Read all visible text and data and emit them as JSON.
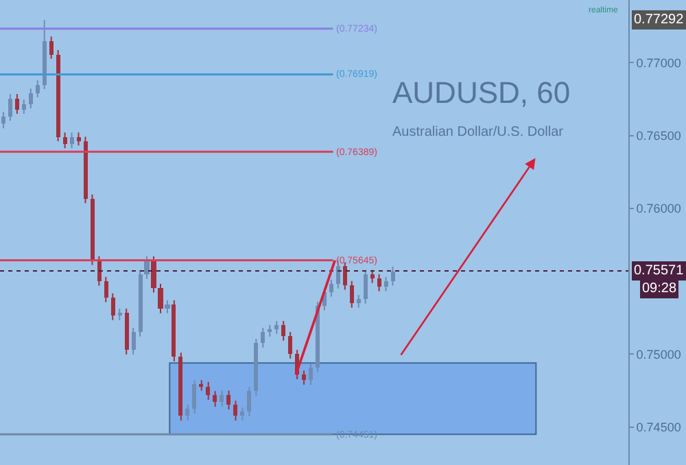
{
  "chart_data": {
    "type": "candlestick",
    "categories": [
      null,
      null,
      null,
      null,
      null,
      null,
      null,
      null,
      null,
      null,
      null,
      null,
      null,
      null,
      null,
      null,
      null,
      null,
      null,
      null,
      null,
      null,
      null,
      null,
      null,
      null,
      null,
      null,
      null,
      null,
      null,
      null,
      null,
      null,
      null,
      null,
      null,
      null,
      null,
      null,
      null,
      null,
      null,
      null,
      null,
      null,
      null,
      null,
      null,
      null,
      null,
      null,
      null,
      null,
      null,
      null,
      null,
      null,
      null,
      null,
      null,
      null,
      null,
      null,
      null,
      null,
      null,
      null,
      null,
      null,
      null,
      null,
      null,
      null,
      null,
      null,
      null,
      null,
      null,
      null,
      null,
      null,
      null,
      null,
      null,
      null,
      null,
      null,
      null,
      null,
      null,
      null
    ],
    "ohlc": [
      [
        0.7658,
        0.76662,
        0.7655,
        0.76632
      ],
      [
        0.76632,
        0.76785,
        0.76602,
        0.76755
      ],
      [
        0.76755,
        0.76785,
        0.76649,
        0.76679
      ],
      [
        0.76679,
        0.76747,
        0.76649,
        0.76717
      ],
      [
        0.76717,
        0.76822,
        0.76687,
        0.76792
      ],
      [
        0.76792,
        0.76879,
        0.76762,
        0.76849
      ],
      [
        0.76849,
        0.77292,
        0.76819,
        0.7715
      ],
      [
        0.7715,
        0.7718,
        0.77027,
        0.77057
      ],
      [
        0.77057,
        0.77087,
        0.76461,
        0.76491
      ],
      [
        0.76491,
        0.76521,
        0.76413,
        0.76443
      ],
      [
        0.76443,
        0.76521,
        0.76413,
        0.76491
      ],
      [
        0.76491,
        0.76521,
        0.76432,
        0.76462
      ],
      [
        0.76462,
        0.76492,
        0.76036,
        0.76066
      ],
      [
        0.76066,
        0.76096,
        0.75612,
        0.75642
      ],
      [
        0.75642,
        0.75672,
        0.7547,
        0.755
      ],
      [
        0.755,
        0.7553,
        0.75357,
        0.75387
      ],
      [
        0.75387,
        0.75417,
        0.75234,
        0.75264
      ],
      [
        0.75264,
        0.75313,
        0.75234,
        0.75283
      ],
      [
        0.75283,
        0.75313,
        0.74998,
        0.75028
      ],
      [
        0.75028,
        0.75181,
        0.74998,
        0.75151
      ],
      [
        0.75151,
        0.75577,
        0.75121,
        0.75547
      ],
      [
        0.75547,
        0.75672,
        0.75517,
        0.75642
      ],
      [
        0.75642,
        0.75672,
        0.75423,
        0.75453
      ],
      [
        0.75453,
        0.75483,
        0.75281,
        0.75311
      ],
      [
        0.75311,
        0.7537,
        0.75281,
        0.7534
      ],
      [
        0.7534,
        0.7537,
        0.74951,
        0.74981
      ],
      [
        0.74981,
        0.75011,
        0.74545,
        0.74575
      ],
      [
        0.74575,
        0.74653,
        0.74545,
        0.74623
      ],
      [
        0.74623,
        0.74822,
        0.74593,
        0.74792
      ],
      [
        0.74792,
        0.74822,
        0.7475,
        0.7478
      ],
      [
        0.7478,
        0.7481,
        0.74687,
        0.74717
      ],
      [
        0.74717,
        0.74747,
        0.7464,
        0.7467
      ],
      [
        0.7467,
        0.7475,
        0.7464,
        0.7472
      ],
      [
        0.7472,
        0.7475,
        0.74621,
        0.74651
      ],
      [
        0.74651,
        0.74681,
        0.74545,
        0.74575
      ],
      [
        0.74575,
        0.74634,
        0.74545,
        0.74604
      ],
      [
        0.74604,
        0.74775,
        0.74574,
        0.74745
      ],
      [
        0.74745,
        0.75105,
        0.74715,
        0.75075
      ],
      [
        0.75075,
        0.75181,
        0.75045,
        0.75151
      ],
      [
        0.75151,
        0.752,
        0.75121,
        0.7517
      ],
      [
        0.7517,
        0.75228,
        0.7514,
        0.75198
      ],
      [
        0.75198,
        0.75228,
        0.75093,
        0.75123
      ],
      [
        0.75123,
        0.75153,
        0.7497,
        0.75
      ],
      [
        0.75,
        0.7503,
        0.74828,
        0.74858
      ],
      [
        0.74858,
        0.74888,
        0.74791,
        0.74821
      ],
      [
        0.74821,
        0.74936,
        0.74791,
        0.74906
      ],
      [
        0.74906,
        0.7536,
        0.74876,
        0.7533
      ],
      [
        0.7533,
        0.75455,
        0.753,
        0.75425
      ],
      [
        0.75425,
        0.75511,
        0.75395,
        0.75481
      ],
      [
        0.75481,
        0.75645,
        0.75451,
        0.756
      ],
      [
        0.756,
        0.7563,
        0.75442,
        0.75472
      ],
      [
        0.75472,
        0.75502,
        0.75319,
        0.75349
      ],
      [
        0.75349,
        0.75407,
        0.75319,
        0.75377
      ],
      [
        0.75377,
        0.75577,
        0.75347,
        0.75547
      ],
      [
        0.75547,
        0.75577,
        0.75489,
        0.75519
      ],
      [
        0.75519,
        0.75549,
        0.75432,
        0.75462
      ],
      [
        0.75462,
        0.7553,
        0.75432,
        0.755
      ],
      [
        0.755,
        0.75601,
        0.7547,
        0.75571
      ],
      null,
      null,
      null,
      null,
      null,
      null,
      null,
      null,
      null,
      null,
      null,
      null,
      null,
      null,
      null,
      null,
      null,
      null,
      null,
      null,
      null,
      null,
      null,
      null,
      null,
      null,
      null,
      null,
      null,
      null,
      null,
      null,
      null,
      null
    ],
    "colors": [
      "#6f8db5",
      "#6f8db5",
      "#a2323f",
      "#6f8db5",
      "#6f8db5",
      "#6f8db5",
      "#6f8db5",
      "#a2323f",
      "#a2323f",
      "#a2323f",
      "#6f8db5",
      "#a2323f",
      "#a2323f",
      "#a2323f",
      "#a2323f",
      "#a2323f",
      "#a2323f",
      "#6f8db5",
      "#a2323f",
      "#6f8db5",
      "#6f8db5",
      "#6f8db5",
      "#a2323f",
      "#a2323f",
      "#6f8db5",
      "#a2323f",
      "#a2323f",
      "#6f8db5",
      "#6f8db5",
      "#a2323f",
      "#a2323f",
      "#a2323f",
      "#6f8db5",
      "#a2323f",
      "#a2323f",
      "#6f8db5",
      "#6f8db5",
      "#6f8db5",
      "#6f8db5",
      "#6f8db5",
      "#6f8db5",
      "#a2323f",
      "#a2323f",
      "#a2323f",
      "#a2323f",
      "#6f8db5",
      "#6f8db5",
      "#6f8db5",
      "#6f8db5",
      "#6f8db5",
      "#a2323f",
      "#a2323f",
      "#6f8db5",
      "#6f8db5",
      "#a2323f",
      "#a2323f",
      "#6f8db5",
      "#6f8db5",
      null,
      null,
      null,
      null,
      null,
      null,
      null,
      null,
      null,
      null,
      null,
      null,
      null,
      null,
      null,
      null,
      null,
      null,
      null,
      null,
      null,
      null,
      null,
      null,
      null,
      null,
      null,
      null,
      null,
      null,
      null,
      null,
      null,
      null
    ],
    "ylim": [
      0.7424,
      0.7743
    ],
    "yticks": [
      {
        "value": 0.745,
        "label": "0.74500"
      },
      {
        "value": 0.75,
        "label": "0.75000"
      },
      {
        "value": 0.76,
        "label": "0.76000"
      },
      {
        "value": 0.765,
        "label": "0.76500"
      },
      {
        "value": 0.77,
        "label": "0.77000"
      }
    ],
    "ref_lines": [
      {
        "axis": "y",
        "value": 0.77234,
        "label": "(0.77234)",
        "color": "#8a7fe0"
      },
      {
        "axis": "y",
        "value": 0.76919,
        "label": "(0.76919)",
        "color": "#3f9bd6"
      },
      {
        "axis": "y",
        "value": 0.76389,
        "label": "(0.76389)",
        "color": "#d9405a"
      },
      {
        "axis": "y",
        "value": 0.75645,
        "label": "(0.75645)",
        "color": "#d9405a"
      },
      {
        "axis": "y",
        "value": 0.74451,
        "label": "(0.74451)",
        "color": "#6f8aa8"
      },
      {
        "axis": "y",
        "value": 0.75571,
        "label": "0.75571",
        "color": "#4a2040",
        "line_style": "dotted"
      }
    ],
    "bands": [
      {
        "axis": "y",
        "from": 0.74451,
        "to": 0.7494,
        "color": "#7babe9"
      }
    ],
    "annotations": [
      {
        "text": "0.77292",
        "y": 0.77292
      },
      "09:28",
      "AUDUSD, 60",
      "Australian Dollar/U.S. Dollar",
      "realtime"
    ],
    "grid": false
  }
}
